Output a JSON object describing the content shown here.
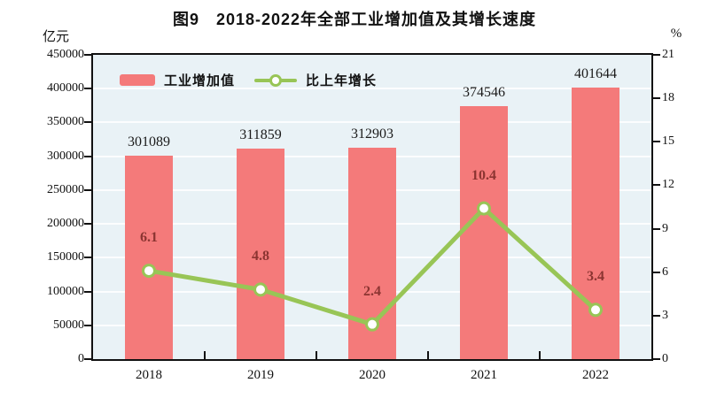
{
  "chart_data": {
    "type": "bar",
    "title": "图9　2018-2022年全部工业增加值及其增长速度",
    "categories": [
      "2018",
      "2019",
      "2020",
      "2021",
      "2022"
    ],
    "series": [
      {
        "name": "工业增加值",
        "type": "bar",
        "axis": "left",
        "unit": "亿元",
        "color": "#F47A7A",
        "values": [
          301089,
          311859,
          312903,
          374546,
          401644
        ],
        "labels": [
          "301089",
          "311859",
          "312903",
          "374546",
          "401644"
        ],
        "label_color": "#1a1a1a"
      },
      {
        "name": "比上年增长",
        "type": "line",
        "axis": "right",
        "unit": "%",
        "color": "#98C556",
        "marker_fill": "#FFFFFF",
        "values": [
          6.1,
          4.8,
          2.4,
          10.4,
          3.4
        ],
        "labels": [
          "6.1",
          "4.8",
          "2.4",
          "10.4",
          "3.4"
        ],
        "label_color": "#8B3431"
      }
    ],
    "left_axis": {
      "unit": "亿元",
      "min": 0,
      "max": 450000,
      "step": 50000,
      "ticks": [
        "450000",
        "400000",
        "350000",
        "300000",
        "250000",
        "200000",
        "150000",
        "100000",
        "50000",
        "0"
      ]
    },
    "right_axis": {
      "unit": "%",
      "min": 0,
      "max": 21,
      "step": 3,
      "ticks": [
        "21",
        "18",
        "15",
        "12",
        "9",
        "6",
        "3",
        "0"
      ]
    },
    "plot": {
      "background": "#E9F2F6",
      "grid_color": "#FFFFFF",
      "frame_color": "#111111"
    },
    "legend": {
      "position": "top-left-inside",
      "items": [
        "工业增加值",
        "比上年增长"
      ]
    }
  }
}
